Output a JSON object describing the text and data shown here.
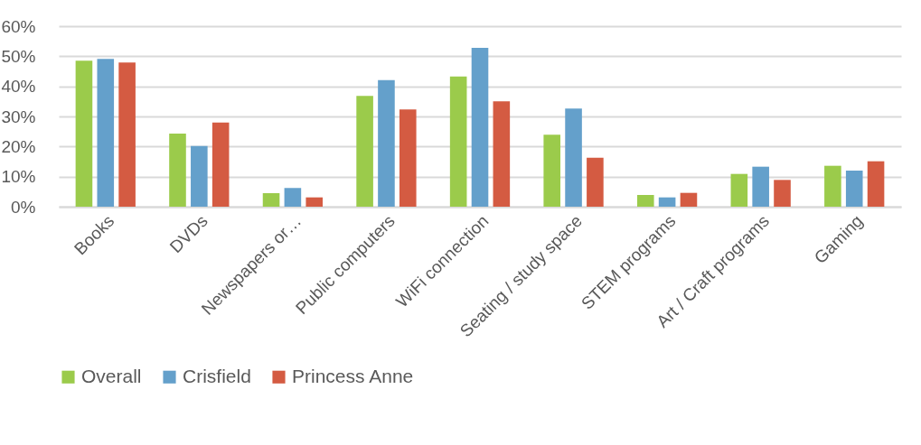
{
  "chart_data": {
    "type": "bar",
    "categories": [
      "Books",
      "DVDs",
      "Newspapers or…",
      "Public computers",
      "WiFi connection",
      "Seating / study space",
      "STEM programs",
      "Art / Craft programs",
      "Gaming"
    ],
    "series": [
      {
        "name": "Overall",
        "color": "#9bcb4b",
        "values": [
          48.5,
          24.3,
          4.5,
          36.8,
          43.3,
          23.9,
          3.9,
          10.9,
          13.6
        ]
      },
      {
        "name": "Crisfield",
        "color": "#64a0cb",
        "values": [
          49.1,
          20.2,
          6.2,
          42.1,
          52.8,
          32.6,
          3.1,
          13.3,
          12.0
        ]
      },
      {
        "name": "Princess Anne",
        "color": "#d45b42",
        "values": [
          47.9,
          28.0,
          3.1,
          32.3,
          35.0,
          16.3,
          4.6,
          8.9,
          15.1
        ]
      }
    ],
    "ylim": [
      0,
      60
    ],
    "yticks": [
      {
        "value": 0,
        "label": "0%"
      },
      {
        "value": 10,
        "label": "10%"
      },
      {
        "value": 20,
        "label": "20%"
      },
      {
        "value": 30,
        "label": "30%"
      },
      {
        "value": 40,
        "label": "40%"
      },
      {
        "value": 50,
        "label": "50%"
      },
      {
        "value": 60,
        "label": "60%"
      }
    ],
    "grid": "y",
    "legend": "bottom"
  }
}
